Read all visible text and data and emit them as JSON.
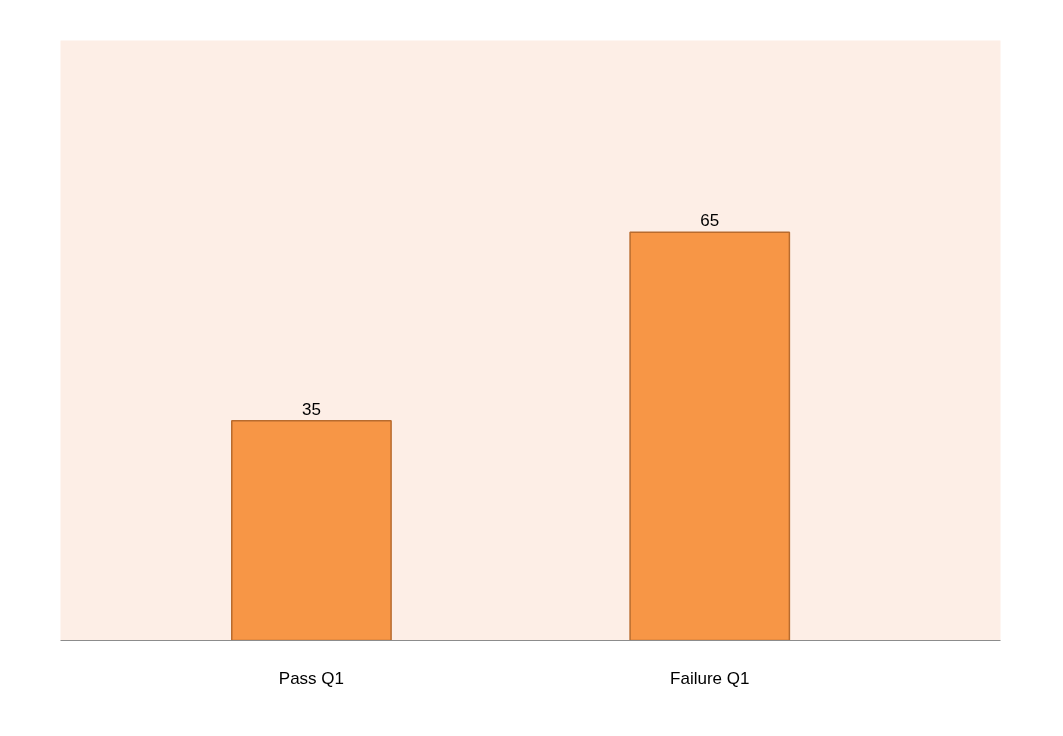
{
  "chart_data": {
    "type": "bar",
    "categories": [
      "Pass Q1",
      "Failure Q1"
    ],
    "values": [
      35,
      65
    ],
    "color": "#f79646",
    "data_labels": true,
    "grid": false
  }
}
